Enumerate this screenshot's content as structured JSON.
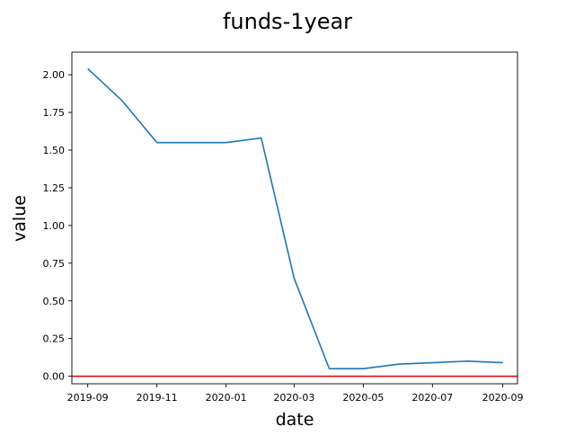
{
  "chart_data": {
    "type": "line",
    "title": "funds-1year",
    "xlabel": "date",
    "ylabel": "value",
    "x_tick_labels": [
      "2019-09",
      "2019-11",
      "2020-01",
      "2020-03",
      "2020-05",
      "2020-07",
      "2020-09"
    ],
    "y_tick_labels": [
      "0.00",
      "0.25",
      "0.50",
      "0.75",
      "1.00",
      "1.25",
      "1.50",
      "1.75",
      "2.00"
    ],
    "ylim": [
      -0.05,
      2.15
    ],
    "xlim": [
      "2019-08-18",
      "2020-09-14"
    ],
    "grid": false,
    "series": [
      {
        "color": "#1f77b4",
        "x": [
          "2019-09-01",
          "2019-10-01",
          "2019-11-01",
          "2019-12-01",
          "2020-01-01",
          "2020-02-01",
          "2020-03-01",
          "2020-04-01",
          "2020-05-01",
          "2020-06-01",
          "2020-07-01",
          "2020-08-01",
          "2020-09-01"
        ],
        "y": [
          2.04,
          1.83,
          1.55,
          1.55,
          1.55,
          1.58,
          0.65,
          0.05,
          0.05,
          0.08,
          0.09,
          0.1,
          0.09
        ]
      }
    ],
    "reference_line": {
      "y": 0,
      "color": "#e00000"
    }
  }
}
